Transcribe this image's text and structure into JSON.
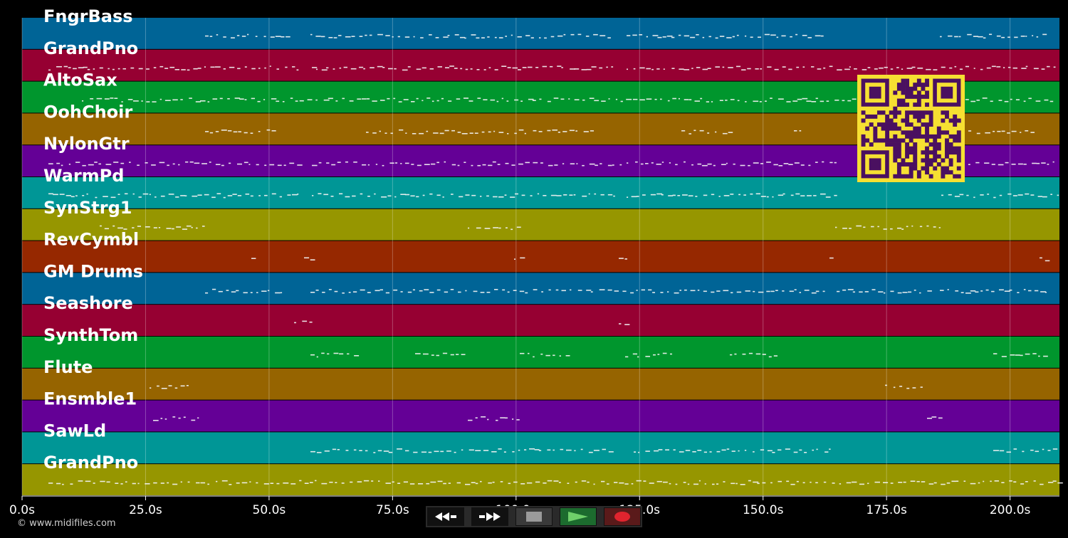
{
  "tracks": [
    {
      "name": "FngrBass",
      "color": "#006496"
    },
    {
      "name": "GrandPno",
      "color": "#960032"
    },
    {
      "name": "AltoSax",
      "color": "#00962d"
    },
    {
      "name": "OohChoir",
      "color": "#966400"
    },
    {
      "name": "NylonGtr",
      "color": "#640096"
    },
    {
      "name": "WarmPd",
      "color": "#009696"
    },
    {
      "name": "SynStrg1",
      "color": "#969600"
    },
    {
      "name": "RevCymbl",
      "color": "#962800"
    },
    {
      "name": "GM Drums",
      "color": "#006496"
    },
    {
      "name": "Seashore",
      "color": "#960032"
    },
    {
      "name": "SynthTom",
      "color": "#00962d"
    },
    {
      "name": "Flute",
      "color": "#966400"
    },
    {
      "name": "Ensmble1",
      "color": "#640096"
    },
    {
      "name": "SawLd",
      "color": "#009696"
    },
    {
      "name": "GrandPno",
      "color": "#969600"
    }
  ],
  "time_axis": {
    "ticks": [
      {
        "seconds": 0,
        "label": "0.0s"
      },
      {
        "seconds": 25,
        "label": "25.0s"
      },
      {
        "seconds": 50,
        "label": "50.0s"
      },
      {
        "seconds": 75,
        "label": "75.0s"
      },
      {
        "seconds": 100,
        "label": "100.0s"
      },
      {
        "seconds": 125,
        "label": "125.0s"
      },
      {
        "seconds": 150,
        "label": "150.0s"
      },
      {
        "seconds": 175,
        "label": "175.0s"
      },
      {
        "seconds": 200,
        "label": "200.0s"
      }
    ],
    "max_seconds": 210
  },
  "transport": {
    "rewind_icon": "rewind-icon",
    "forward_icon": "fast-forward-icon",
    "stop_icon": "stop-icon",
    "play_icon": "play-icon",
    "record_icon": "record-icon"
  },
  "footer": {
    "copyright": "© www.midifiles.com"
  },
  "qr": {
    "fg": "#4a1060",
    "bg": "#f6e032"
  }
}
